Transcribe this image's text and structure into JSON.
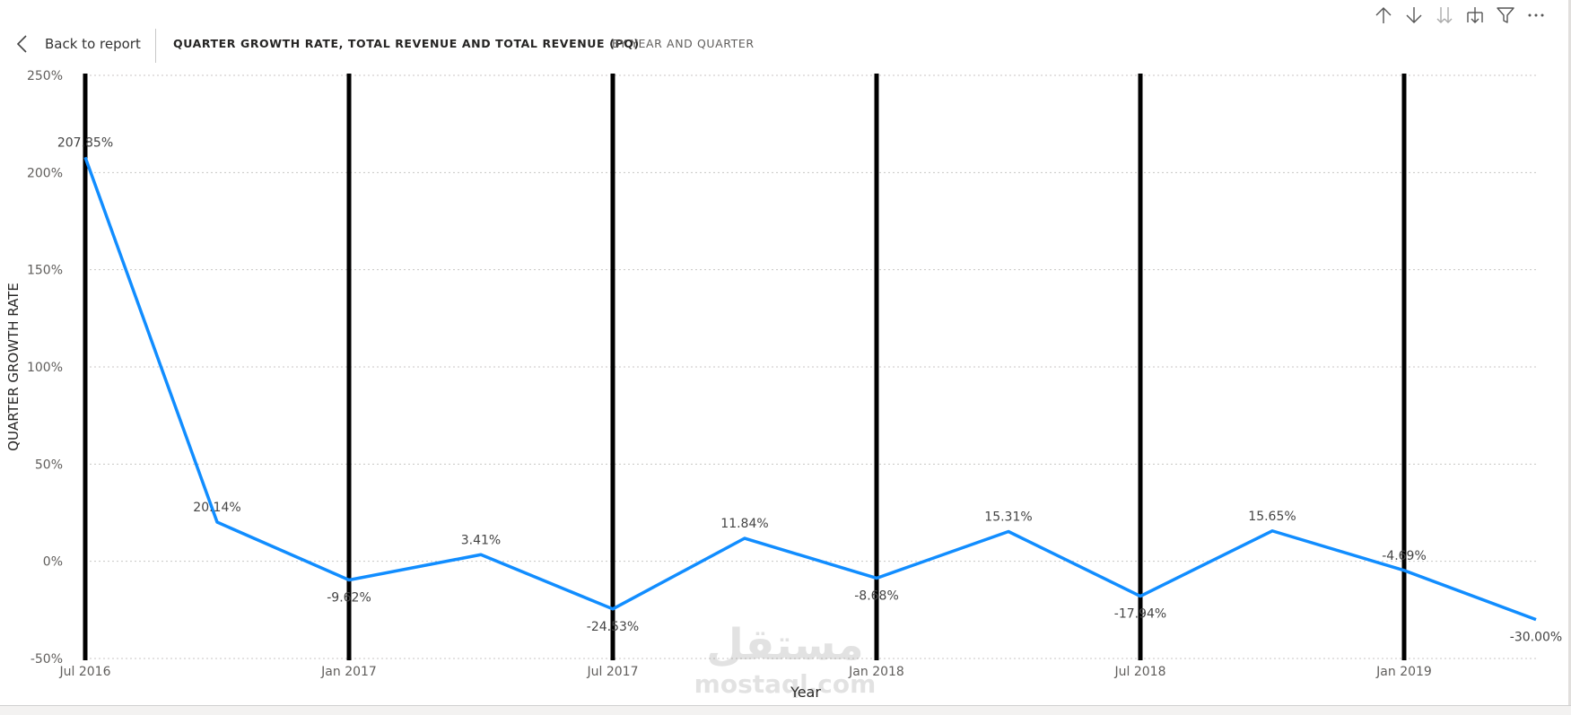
{
  "header": {
    "back_label": "Back to report",
    "title": "QUARTER GROWTH RATE, TOTAL REVENUE AND TOTAL REVENUE (PQ)",
    "subtitle": "BY YEAR AND QUARTER"
  },
  "toolbar": {
    "icons": [
      "arrow-up-icon",
      "arrow-down-icon",
      "double-arrow-down-icon",
      "expand-hierarchy-icon",
      "filter-icon",
      "more-options-icon"
    ]
  },
  "colors": {
    "line": "#118DFF",
    "bars": "#000000",
    "grid": "#c8c6c4",
    "axis_text": "#605e5c",
    "label_text": "#444444"
  },
  "watermark": {
    "arabic": "مستقل",
    "latin": "mostaql.com"
  },
  "chart_data": {
    "type": "line",
    "title": "QUARTER GROWTH RATE, TOTAL REVENUE AND TOTAL REVENUE (PQ)",
    "xlabel": "Year",
    "ylabel": "QUARTER GROWTH RATE",
    "ylim": [
      -50,
      250
    ],
    "yticks": [
      250,
      200,
      150,
      100,
      50,
      0,
      -50
    ],
    "ytick_labels": [
      "250%",
      "200%",
      "150%",
      "100%",
      "50%",
      "0%",
      "-50%"
    ],
    "x_tick_labels": [
      "Jul 2016",
      "Jan 2017",
      "Jul 2017",
      "Jan 2018",
      "Jul 2018",
      "Jan 2019"
    ],
    "x_tick_quarters": [
      0,
      2,
      4,
      6,
      8,
      10
    ],
    "grid": true,
    "series": [
      {
        "values": [
          207.85,
          20.14,
          -9.62,
          3.41,
          -24.53,
          11.84,
          -8.68,
          15.31,
          -17.94,
          15.65,
          -4.69,
          -30.0
        ],
        "labels": [
          "207.85%",
          "20.14%",
          "-9.62%",
          "3.41%",
          "-24.53%",
          "11.84%",
          "-8.68%",
          "15.31%",
          "-17.94%",
          "15.65%",
          "-4.69%",
          "-30.00%"
        ]
      }
    ],
    "bars_at_quarters": [
      0,
      2,
      4,
      6,
      8,
      10
    ]
  }
}
